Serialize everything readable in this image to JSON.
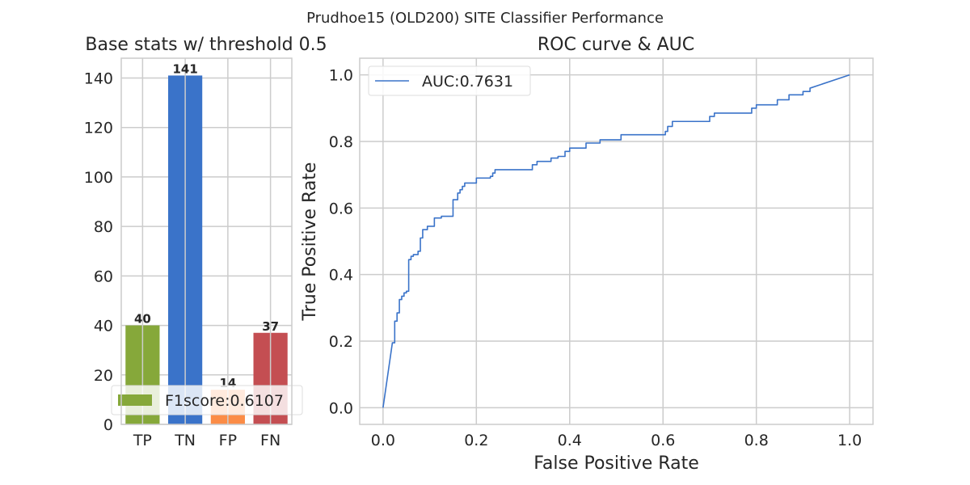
{
  "suptitle": "Prudhoe15 (OLD200) SITE Classifier Performance",
  "chart_data": [
    {
      "type": "bar",
      "title": "Base stats w/ threshold 0.5",
      "categories": [
        "TP",
        "TN",
        "FP",
        "FN"
      ],
      "values": [
        40,
        141,
        14,
        37
      ],
      "value_labels": [
        "40",
        "141",
        "14",
        "37"
      ],
      "colors": [
        "#86a83a",
        "#3a73c9",
        "#fb8c46",
        "#c44e52"
      ],
      "ylim": [
        0,
        148
      ],
      "yticks": [
        0,
        20,
        40,
        60,
        80,
        100,
        120,
        140
      ],
      "ytick_labels": [
        "0",
        "20",
        "40",
        "60",
        "80",
        "100",
        "120",
        "140"
      ],
      "grid": true,
      "legend": {
        "label": "F1score:0.6107",
        "placement": "lower-right",
        "color": "#86a83a"
      }
    },
    {
      "type": "line",
      "title": "ROC curve & AUC",
      "xlabel": "False Positive Rate",
      "ylabel": "True Positive Rate",
      "xlim": [
        -0.05,
        1.05
      ],
      "ylim": [
        -0.05,
        1.05
      ],
      "xticks": [
        0.0,
        0.2,
        0.4,
        0.6,
        0.8,
        1.0
      ],
      "xtick_labels": [
        "0.0",
        "0.2",
        "0.4",
        "0.6",
        "0.8",
        "1.0"
      ],
      "yticks": [
        0.0,
        0.2,
        0.4,
        0.6,
        0.8,
        1.0
      ],
      "ytick_labels": [
        "0.0",
        "0.2",
        "0.4",
        "0.6",
        "0.8",
        "1.0"
      ],
      "grid": true,
      "legend": {
        "label": "AUC:0.7631",
        "placement": "upper-left",
        "color": "#3a73c9"
      },
      "series": [
        {
          "color": "#3a73c9",
          "x": [
            0.0,
            0.02,
            0.025,
            0.025,
            0.03,
            0.03,
            0.035,
            0.035,
            0.04,
            0.04,
            0.045,
            0.045,
            0.05,
            0.05,
            0.055,
            0.055,
            0.06,
            0.06,
            0.065,
            0.065,
            0.075,
            0.075,
            0.08,
            0.08,
            0.085,
            0.085,
            0.095,
            0.095,
            0.11,
            0.11,
            0.125,
            0.125,
            0.15,
            0.15,
            0.16,
            0.16,
            0.165,
            0.165,
            0.17,
            0.17,
            0.175,
            0.175,
            0.2,
            0.2,
            0.23,
            0.23,
            0.235,
            0.235,
            0.24,
            0.24,
            0.32,
            0.32,
            0.33,
            0.33,
            0.36,
            0.36,
            0.375,
            0.375,
            0.39,
            0.39,
            0.4,
            0.4,
            0.435,
            0.435,
            0.465,
            0.465,
            0.51,
            0.51,
            0.605,
            0.605,
            0.61,
            0.61,
            0.62,
            0.62,
            0.7,
            0.7,
            0.71,
            0.71,
            0.79,
            0.79,
            0.8,
            0.8,
            0.845,
            0.845,
            0.87,
            0.87,
            0.9,
            0.9,
            0.915,
            0.915,
            1.0
          ],
          "y": [
            0.0,
            0.195,
            0.195,
            0.26,
            0.26,
            0.285,
            0.285,
            0.325,
            0.325,
            0.335,
            0.335,
            0.345,
            0.345,
            0.35,
            0.35,
            0.445,
            0.445,
            0.455,
            0.455,
            0.46,
            0.46,
            0.47,
            0.47,
            0.51,
            0.51,
            0.535,
            0.535,
            0.545,
            0.545,
            0.57,
            0.57,
            0.575,
            0.575,
            0.625,
            0.625,
            0.645,
            0.645,
            0.655,
            0.655,
            0.665,
            0.665,
            0.675,
            0.675,
            0.69,
            0.69,
            0.695,
            0.695,
            0.705,
            0.705,
            0.715,
            0.715,
            0.73,
            0.73,
            0.74,
            0.74,
            0.75,
            0.75,
            0.755,
            0.755,
            0.77,
            0.77,
            0.78,
            0.78,
            0.795,
            0.795,
            0.805,
            0.805,
            0.82,
            0.82,
            0.83,
            0.83,
            0.845,
            0.845,
            0.86,
            0.86,
            0.875,
            0.875,
            0.885,
            0.885,
            0.9,
            0.9,
            0.91,
            0.91,
            0.925,
            0.925,
            0.94,
            0.94,
            0.95,
            0.95,
            0.96,
            1.0
          ]
        }
      ]
    }
  ]
}
